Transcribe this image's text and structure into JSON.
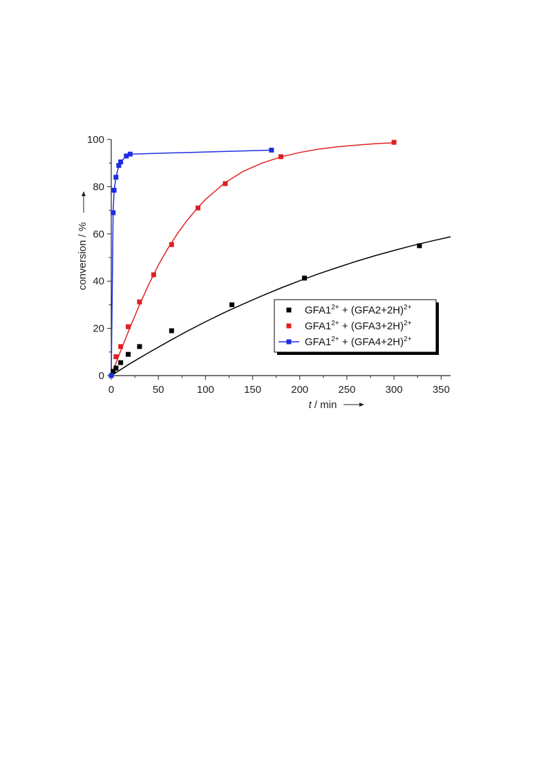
{
  "chart_data": {
    "type": "scatter",
    "xlabel_var": "t",
    "xlabel_unit": " / min",
    "ylabel": "conversion / %",
    "xlim": [
      0,
      360
    ],
    "ylim": [
      0,
      100
    ],
    "xticks": [
      0,
      50,
      100,
      150,
      200,
      250,
      300,
      350
    ],
    "yticks": [
      0,
      20,
      40,
      60,
      80,
      100
    ],
    "grid": false,
    "legend_position": "lower-right",
    "series": [
      {
        "name": "GFA1²⁺ + (GFA2+2H)²⁺",
        "name_parts": [
          "GFA1",
          "2+",
          " + (GFA2+2H)",
          "2+"
        ],
        "color": "#000000",
        "marker": "square",
        "x": [
          0,
          2,
          5,
          10,
          18,
          30,
          64,
          128,
          205,
          327
        ],
        "y": [
          0,
          1.8,
          3.2,
          5.5,
          9,
          12.3,
          19,
          30,
          41.3,
          55
        ],
        "fit": {
          "x": [
            0,
            20,
            40,
            60,
            80,
            100,
            120,
            140,
            160,
            180,
            200,
            220,
            240,
            260,
            280,
            300,
            320,
            340,
            360
          ],
          "y": [
            0,
            5.1,
            9.8,
            14.3,
            18.7,
            22.8,
            26.7,
            30.3,
            33.8,
            37.1,
            40.2,
            43.1,
            45.8,
            48.4,
            50.8,
            53.0,
            55.1,
            57.0,
            58.8
          ]
        }
      },
      {
        "name": "GFA1²⁺ + (GFA3+2H)²⁺",
        "name_parts": [
          "GFA1",
          "2+",
          " + (GFA3+2H)",
          "2+"
        ],
        "color": "#e02020",
        "marker": "square",
        "x": [
          0,
          5,
          10,
          18,
          30,
          45,
          64,
          92,
          121,
          180,
          300
        ],
        "y": [
          0,
          8,
          12.3,
          20.7,
          31.2,
          42.7,
          55.5,
          71,
          81.3,
          92.7,
          98.8
        ],
        "fit": {
          "x": [
            0,
            10,
            20,
            30,
            40,
            50,
            60,
            70,
            80,
            90,
            100,
            120,
            140,
            160,
            180,
            200,
            220,
            240,
            260,
            280,
            300
          ],
          "y": [
            0,
            10.5,
            20.5,
            30,
            38.8,
            46.8,
            53.8,
            60.0,
            65.5,
            70.3,
            74.6,
            81.5,
            86.5,
            90.0,
            92.6,
            94.5,
            95.9,
            96.9,
            97.6,
            98.2,
            98.6
          ]
        }
      },
      {
        "name": "GFA1²⁺ + (GFA4+2H)²⁺",
        "name_parts": [
          "GFA1",
          "2+",
          " + (GFA4+2H)",
          "2+"
        ],
        "color": "#1c2ee0",
        "marker": "square",
        "x": [
          0,
          2,
          3,
          5,
          8,
          10,
          16,
          20,
          170
        ],
        "y": [
          0,
          69,
          78.5,
          84,
          89,
          90.5,
          93,
          93.8,
          95.5
        ],
        "fit": {
          "x": [
            0,
            2,
            3,
            5,
            8,
            10,
            16,
            20,
            170
          ],
          "y": [
            0,
            69,
            78.5,
            84,
            89,
            90.5,
            93,
            93.8,
            95.5
          ]
        }
      }
    ]
  }
}
